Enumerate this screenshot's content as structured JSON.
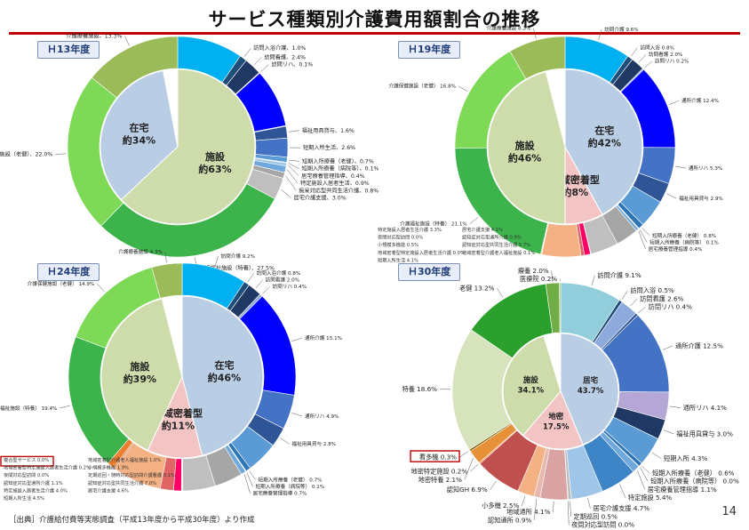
{
  "title": "サービス種類別介護費用額割合の推移",
  "footer": "［出典］介護給付費等実態調査（平成13年度から平成30年度）より作成",
  "page_number": "14",
  "colors": {
    "facility": "#cddcaa",
    "home": "#b9cde5",
    "community": "#f2c4c4",
    "accent_red": "#c00000"
  },
  "chart_data": [
    {
      "type": "pie",
      "year_label": "Ｈ13年度",
      "inner": [
        {
          "name": "施設",
          "value": 63,
          "label": "施設\n約63%",
          "color": "#cddcaa"
        },
        {
          "name": "在宅",
          "value": 34,
          "label": "在宅\n約34%",
          "color": "#b9cde5"
        },
        {
          "name": "その他",
          "value": 3,
          "label": "",
          "color": "#ffffff"
        }
      ],
      "outer_start_deg": 0,
      "outer": [
        {
          "label": "訪問介護、9.0%",
          "value": 9.0,
          "color": "#00b0f0",
          "show": false
        },
        {
          "label": "訪問入浴介護、1.0%",
          "value": 1.0,
          "color": "#1f4e79"
        },
        {
          "label": "訪問看護、2.4%",
          "value": 2.4,
          "color": "#203864"
        },
        {
          "label": "訪問リハ、0.1%",
          "value": 0.1,
          "color": "#8ea9db"
        },
        {
          "label": "通所介護、8.0%",
          "value": 8.0,
          "color": "#0000ff",
          "show": false
        },
        {
          "label": "通所リハ、0.1%",
          "value": 0.1,
          "color": "#4472c4",
          "show": false
        },
        {
          "label": "福祉用具貸与、1.6%",
          "value": 1.6,
          "color": "#2f5597"
        },
        {
          "label": "短期入所生活、2.6%",
          "value": 2.6,
          "color": "#4472c4"
        },
        {
          "label": "短期入所療養（老健）、0.7%",
          "value": 0.7,
          "color": "#5b9bd5"
        },
        {
          "label": "短期入所療養（病院等）、0.1%",
          "value": 0.1,
          "color": "#2e75b6"
        },
        {
          "label": "居宅療養管理指導、0.4%",
          "value": 0.4,
          "color": "#9dc3e6"
        },
        {
          "label": "特定施設入居者生活、0.9%",
          "value": 0.9,
          "color": "#6fa8dc"
        },
        {
          "label": "痴呆対応型共同生活介護、0.8%",
          "value": 0.8,
          "color": "#a6a6a6"
        },
        {
          "label": "居宅介護支援、3.0%",
          "value": 3.0,
          "color": "#bfbfbf"
        },
        {
          "label": "介護福祉施設（特養）、27.5%",
          "value": 27.5,
          "color": "#3cb44b"
        },
        {
          "label": "介護保健施設（老健）、22.0%",
          "value": 22.0,
          "color": "#7ed957"
        },
        {
          "label": "介護療養施設、13.3%",
          "value": 13.3,
          "color": "#9bbb59"
        }
      ]
    },
    {
      "type": "pie",
      "year_label": "Ｈ19年度",
      "inner": [
        {
          "name": "在宅",
          "value": 42,
          "label": "在宅\n約42%",
          "color": "#b9cde5"
        },
        {
          "name": "地域密着型",
          "value": 8,
          "label": "地域密着型\n約8%",
          "color": "#f2c4c4"
        },
        {
          "name": "施設",
          "value": 46,
          "label": "施設\n約46%",
          "color": "#cddcaa"
        },
        {
          "name": "その他",
          "value": 4,
          "label": "",
          "color": "#ffffff"
        }
      ],
      "outer_start_deg": 0,
      "outer": [
        {
          "label": "訪問介護 9.6%",
          "value": 9.6,
          "color": "#00b0f0"
        },
        {
          "label": "訪問入浴 0.8%",
          "value": 0.8,
          "color": "#1f4e79"
        },
        {
          "label": "訪問看護 2.0%",
          "value": 2.0,
          "color": "#203864"
        },
        {
          "label": "訪問リハ 0.2%",
          "value": 0.2,
          "color": "#8ea9db"
        },
        {
          "label": "通所介護 12.4%",
          "value": 12.4,
          "color": "#0000ff"
        },
        {
          "label": "通所リハ 5.3%",
          "value": 5.3,
          "color": "#4472c4"
        },
        {
          "label": "福祉用具貸与 2.9%",
          "value": 2.9,
          "color": "#2f5597"
        },
        {
          "label": "短期入所生活 4.1%",
          "value": 4.1,
          "color": "#5b9bd5",
          "show": false
        },
        {
          "label": "短期入所療養（老健） 0.8%",
          "value": 0.8,
          "color": "#2e75b6"
        },
        {
          "label": "短期入所療養（病院等） 0.1%",
          "value": 0.1,
          "color": "#9dc3e6"
        },
        {
          "label": "居宅療養管理指導 0.4%",
          "value": 0.4,
          "color": "#6fa8dc"
        },
        {
          "label": "特定施設入居者生活介護 3.3%",
          "value": 3.3,
          "color": "#a6a6a6",
          "show": false
        },
        {
          "label": "居宅介護支援 4.1%",
          "value": 4.1,
          "color": "#bfbfbf",
          "show": false
        },
        {
          "label": "夜間対応型訪問 0.0%",
          "value": 0.05,
          "color": "#7f6000",
          "show": false
        },
        {
          "label": "認知症対応型通所介護 0.9%",
          "value": 0.9,
          "color": "#ff0066",
          "show": false
        },
        {
          "label": "小規模多機能 0.5%",
          "value": 0.5,
          "color": "#e06666",
          "show": false
        },
        {
          "label": "認知症対応型共同生活介護 5.7%",
          "value": 5.7,
          "color": "#f4b183",
          "show": false
        },
        {
          "label": "地域密着型特定施設入居者生活介護 0.0%",
          "value": 0.05,
          "color": "#c55a11",
          "show": false
        },
        {
          "label": "地域密着型介護老人福祉施設 0.1%",
          "value": 0.1,
          "color": "#ed7d31",
          "show": false
        },
        {
          "label": "介護福祉施設（特養） 21.1%",
          "value": 21.1,
          "color": "#3cb44b"
        },
        {
          "label": "介護保健施設（老健） 16.8%",
          "value": 16.8,
          "color": "#7ed957"
        },
        {
          "label": "介護療養施設 8.3%",
          "value": 8.3,
          "color": "#9bbb59"
        }
      ],
      "extra_labels": [
        "特定施設入居者生活介護 3.3%",
        "居宅介護支援 4.1%",
        "夜間対応型訪問 0.0%",
        "認知症対応型通所介護 0.9%",
        "小規模多機能 0.5%",
        "認知症対応型共同生活介護 5.7%",
        "地域密着型特定施設入居者生活介護 0.0%",
        "地域密着型介護老人福祉施設 0.1%",
        "短期入所生活 4.1%"
      ]
    },
    {
      "type": "pie",
      "year_label": "Ｈ24年度",
      "inner": [
        {
          "name": "在宅",
          "value": 46,
          "label": "在宅\n約46%",
          "color": "#b9cde5"
        },
        {
          "name": "地域密着型",
          "value": 11,
          "label": "地域密着型\n約11%",
          "color": "#f2c4c4"
        },
        {
          "name": "施設",
          "value": 39,
          "label": "施設\n約39%",
          "color": "#cddcaa"
        },
        {
          "name": "その他",
          "value": 4,
          "label": "",
          "color": "#ffffff"
        }
      ],
      "outer_start_deg": 0,
      "outer": [
        {
          "label": "訪問介護 9.2%",
          "value": 9.2,
          "color": "#00b0f0"
        },
        {
          "label": "訪問入浴介護 0.8%",
          "value": 0.8,
          "color": "#1f4e79"
        },
        {
          "label": "訪問看護 2.0%",
          "value": 2.0,
          "color": "#203864"
        },
        {
          "label": "訪問リハ 0.4%",
          "value": 0.4,
          "color": "#8ea9db"
        },
        {
          "label": "通所介護 15.1%",
          "value": 15.1,
          "color": "#0000ff"
        },
        {
          "label": "通所リハ 4.9%",
          "value": 4.9,
          "color": "#4472c4"
        },
        {
          "label": "福祉用具貸与 2.8%",
          "value": 2.8,
          "color": "#2f5597"
        },
        {
          "label": "短期入所生活 4.5%",
          "value": 4.5,
          "color": "#5b9bd5",
          "show": false
        },
        {
          "label": "短期入所療養（老健） 0.7%",
          "value": 0.7,
          "color": "#2e75b6"
        },
        {
          "label": "短期入所療養（病院等） 0.1%",
          "value": 0.1,
          "color": "#9dc3e6"
        },
        {
          "label": "居宅療養管理指導 0.7%",
          "value": 0.7,
          "color": "#6fa8dc"
        },
        {
          "label": "特定施設入居者生活介護 4.0%",
          "value": 4.0,
          "color": "#a6a6a6",
          "show": false
        },
        {
          "label": "居宅介護支援 4.6%",
          "value": 4.6,
          "color": "#bfbfbf",
          "show": false
        },
        {
          "label": "定期巡回・随時対応型訪問介護看護 0.1%",
          "value": 0.1,
          "color": "#7f6000",
          "show": false
        },
        {
          "label": "夜間対応型訪問 0.0%",
          "value": 0.05,
          "color": "#595959",
          "show": false
        },
        {
          "label": "複合型サービス 0.0%",
          "value": 0.05,
          "color": "#c00000",
          "show": false
        },
        {
          "label": "認知症対応型通所介護 1.1%",
          "value": 1.1,
          "color": "#ff0066",
          "show": false
        },
        {
          "label": "小規模多機能 1.9%",
          "value": 1.9,
          "color": "#e06666",
          "show": false
        },
        {
          "label": "認知症対応型共同生活介護 7.0%",
          "value": 7.0,
          "color": "#f4b183",
          "show": false
        },
        {
          "label": "地域密着型特定施設入居者生活介護 0.2%",
          "value": 0.2,
          "color": "#c55a11",
          "show": false
        },
        {
          "label": "地域密着型介護老人福祉施設 1.0%",
          "value": 1.0,
          "color": "#ed7d31",
          "show": false
        },
        {
          "label": "介護福祉施設（特養） 19.4%",
          "value": 19.4,
          "color": "#3cb44b"
        },
        {
          "label": "介護保健施設（老健） 14.9%",
          "value": 14.9,
          "color": "#7ed957"
        },
        {
          "label": "介護療養施設 4.3%",
          "value": 4.3,
          "color": "#9bbb59"
        }
      ],
      "extra_labels": [
        "複合型サービス 0.0%",
        "地域密着型介護老人福祉施設 1.0%",
        "地域密着型特定施設入居者生活介護 0.2%",
        "小規模多機能 1.9%",
        "夜間対応型訪問 0.0%",
        "定期巡回・随時対応型訪問介護看護 0.1%",
        "認知症対応型通所介護 1.1%",
        "認知症対応型共同生活介護 7.0%",
        "特定施設入居者生活介護 4.0%",
        "居宅介護支援 4.6%",
        "短期入所生活 4.5%"
      ],
      "highlight": "複合型サービス 0.0%"
    },
    {
      "type": "pie",
      "year_label": "Ｈ30年度",
      "inner": [
        {
          "name": "居宅",
          "value": 43.7,
          "label": "居宅\n43.7%",
          "color": "#b9cde5"
        },
        {
          "name": "地密",
          "value": 17.5,
          "label": "地密\n17.5%",
          "color": "#f2c4c4"
        },
        {
          "name": "施設",
          "value": 34.1,
          "label": "施設\n34.1%",
          "color": "#cddcaa"
        },
        {
          "name": "その他",
          "value": 4.7,
          "label": "",
          "color": "#ffffff"
        }
      ],
      "outer_start_deg": 0,
      "outer": [
        {
          "label": "訪問介護 9.1%",
          "value": 9.1,
          "color": "#92cddc"
        },
        {
          "label": "訪問入浴 0.5%",
          "value": 0.5,
          "color": "#1f4e79"
        },
        {
          "label": "訪問看護 2.6%",
          "value": 2.6,
          "color": "#8ea9db"
        },
        {
          "label": "訪問リハ 0.4%",
          "value": 0.4,
          "color": "#2f5597"
        },
        {
          "label": "通所介護 12.5%",
          "value": 12.5,
          "color": "#4472c4"
        },
        {
          "label": "通所リハ 4.1%",
          "value": 4.1,
          "color": "#b4a7d6"
        },
        {
          "label": "福祉用具貸与 3.0%",
          "value": 3.0,
          "color": "#203864"
        },
        {
          "label": "短期入所 4.3%",
          "value": 4.3,
          "color": "#5b9bd5"
        },
        {
          "label": "短期入所療養（老健） 0.6%",
          "value": 0.6,
          "color": "#2e75b6"
        },
        {
          "label": "短期入所療養（病院等） 0.0%",
          "value": 0.05,
          "color": "#9dc3e6"
        },
        {
          "label": "居宅療養管理指導 1.1%",
          "value": 1.1,
          "color": "#6fa8dc"
        },
        {
          "label": "特定施設 5.4%",
          "value": 5.4,
          "color": "#3d85c6"
        },
        {
          "label": "居宅介護支援 4.7%",
          "value": 4.7,
          "color": "#9fc5e8"
        },
        {
          "label": "定期巡回 0.5%",
          "value": 0.5,
          "color": "#bfbfbf"
        },
        {
          "label": "夜間対応型訪問 0.0%",
          "value": 0.05,
          "color": "#a6a6a6"
        },
        {
          "label": "地域通所 4.1%",
          "value": 4.1,
          "color": "#d9a3a3"
        },
        {
          "label": "認知通所 0.9%",
          "value": 0.9,
          "color": "#e6b8af"
        },
        {
          "label": "小多機 2.5%",
          "value": 2.5,
          "color": "#f4b183"
        },
        {
          "label": "認知GH 6.9%",
          "value": 6.9,
          "color": "#c0504d"
        },
        {
          "label": "地密特定施設 0.2%",
          "value": 0.2,
          "color": "#ed7d31"
        },
        {
          "label": "地密特養 2.1%",
          "value": 2.1,
          "color": "#e69138"
        },
        {
          "label": "看多機 0.3%",
          "value": 0.3,
          "color": "#7f6000"
        },
        {
          "label": "特養 18.6%",
          "value": 18.6,
          "color": "#d6e3bc"
        },
        {
          "label": "老健 13.2%",
          "value": 13.2,
          "color": "#2ca02c"
        },
        {
          "label": "療養 2.0%",
          "value": 2.0,
          "color": "#70ad47"
        },
        {
          "label": "医療院 0.2%",
          "value": 0.2,
          "color": "#9bbb59"
        }
      ],
      "highlight": "看多機 0.3%"
    }
  ]
}
